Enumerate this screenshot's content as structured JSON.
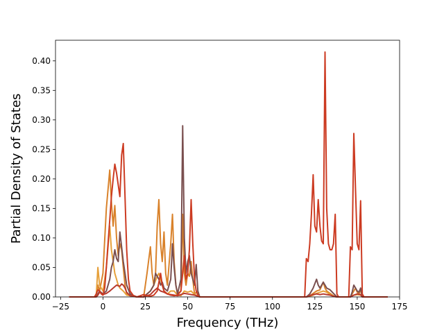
{
  "chart_data": {
    "type": "line",
    "title": "",
    "xlabel": "Frequency (THz)",
    "ylabel": "Partial Density of States",
    "xlim": [
      -28,
      175
    ],
    "ylim": [
      0,
      0.435
    ],
    "xticks": [
      -25,
      0,
      25,
      50,
      75,
      100,
      125,
      150,
      175
    ],
    "yticks": [
      0.0,
      0.05,
      0.1,
      0.15,
      0.2,
      0.25,
      0.3,
      0.35,
      0.4
    ],
    "xtick_labels": [
      "−25",
      "0",
      "25",
      "50",
      "75",
      "100",
      "125",
      "150",
      "175"
    ],
    "ytick_labels": [
      "0.00",
      "0.05",
      "0.10",
      "0.15",
      "0.20",
      "0.25",
      "0.30",
      "0.35",
      "0.40"
    ],
    "grid": false,
    "legend": "none",
    "series": [
      {
        "color": "#d9822b",
        "points": [
          [
            -20,
            0
          ],
          [
            -4,
            0
          ],
          [
            -3,
            0.02
          ],
          [
            -2,
            0.01
          ],
          [
            0,
            0.04
          ],
          [
            2,
            0.15
          ],
          [
            4,
            0.215
          ],
          [
            5,
            0.16
          ],
          [
            6,
            0.12
          ],
          [
            7,
            0.155
          ],
          [
            8,
            0.1
          ],
          [
            9,
            0.07
          ],
          [
            10,
            0.09
          ],
          [
            11,
            0.08
          ],
          [
            12,
            0.05
          ],
          [
            13,
            0.02
          ],
          [
            14,
            0.005
          ],
          [
            20,
            0
          ],
          [
            24,
            0
          ],
          [
            26,
            0.04
          ],
          [
            28,
            0.085
          ],
          [
            29,
            0.04
          ],
          [
            30,
            0.02
          ],
          [
            31,
            0.04
          ],
          [
            32,
            0.12
          ],
          [
            33,
            0.165
          ],
          [
            34,
            0.09
          ],
          [
            35,
            0.06
          ],
          [
            36,
            0.11
          ],
          [
            37,
            0.04
          ],
          [
            38,
            0.02
          ],
          [
            40,
            0.09
          ],
          [
            41,
            0.14
          ],
          [
            42,
            0.06
          ],
          [
            43,
            0.02
          ],
          [
            44,
            0.005
          ],
          [
            46,
            0.01
          ],
          [
            47,
            0.14
          ],
          [
            48,
            0.04
          ],
          [
            49,
            0.02
          ],
          [
            50,
            0.04
          ],
          [
            51,
            0.035
          ],
          [
            52,
            0.06
          ],
          [
            53,
            0.03
          ],
          [
            54,
            0.005
          ],
          [
            56,
            0.01
          ],
          [
            57,
            0
          ],
          [
            120,
            0
          ],
          [
            122,
            0.002
          ],
          [
            124,
            0.006
          ],
          [
            126,
            0.01
          ],
          [
            128,
            0.012
          ],
          [
            130,
            0.025
          ],
          [
            131,
            0.015
          ],
          [
            132,
            0.01
          ],
          [
            134,
            0.006
          ],
          [
            136,
            0.002
          ],
          [
            138,
            0
          ],
          [
            146,
            0
          ],
          [
            147,
            0.005
          ],
          [
            148,
            0.01
          ],
          [
            149,
            0.015
          ],
          [
            150,
            0.008
          ],
          [
            151,
            0.005
          ],
          [
            152,
            0.012
          ],
          [
            153,
            0
          ],
          [
            168,
            0
          ]
        ]
      },
      {
        "color": "#e6a03a",
        "points": [
          [
            -20,
            0
          ],
          [
            -4,
            0
          ],
          [
            -3,
            0.05
          ],
          [
            -2,
            0.02
          ],
          [
            0,
            0.01
          ],
          [
            2,
            0.05
          ],
          [
            4,
            0.12
          ],
          [
            5,
            0.08
          ],
          [
            6,
            0.06
          ],
          [
            7,
            0.04
          ],
          [
            8,
            0.03
          ],
          [
            9,
            0.02
          ],
          [
            10,
            0.015
          ],
          [
            12,
            0.01
          ],
          [
            14,
            0.003
          ],
          [
            20,
            0
          ],
          [
            24,
            0
          ],
          [
            26,
            0.005
          ],
          [
            28,
            0.01
          ],
          [
            30,
            0.02
          ],
          [
            32,
            0.035
          ],
          [
            33,
            0.04
          ],
          [
            34,
            0.03
          ],
          [
            35,
            0.02
          ],
          [
            36,
            0.01
          ],
          [
            38,
            0.005
          ],
          [
            40,
            0.01
          ],
          [
            42,
            0.01
          ],
          [
            44,
            0.003
          ],
          [
            46,
            0.002
          ],
          [
            48,
            0.01
          ],
          [
            50,
            0.008
          ],
          [
            52,
            0.01
          ],
          [
            54,
            0.004
          ],
          [
            56,
            0.002
          ],
          [
            57,
            0
          ],
          [
            120,
            0
          ],
          [
            122,
            0.001
          ],
          [
            124,
            0.003
          ],
          [
            126,
            0.006
          ],
          [
            128,
            0.008
          ],
          [
            130,
            0.01
          ],
          [
            132,
            0.008
          ],
          [
            134,
            0.004
          ],
          [
            136,
            0.001
          ],
          [
            138,
            0
          ],
          [
            146,
            0
          ],
          [
            148,
            0.003
          ],
          [
            150,
            0.004
          ],
          [
            152,
            0.003
          ],
          [
            153,
            0
          ],
          [
            168,
            0
          ]
        ]
      },
      {
        "color": "#7a4f4f",
        "points": [
          [
            -20,
            0
          ],
          [
            -4,
            0
          ],
          [
            -3,
            0.005
          ],
          [
            -2,
            0.01
          ],
          [
            0,
            0.005
          ],
          [
            2,
            0.01
          ],
          [
            4,
            0.03
          ],
          [
            5,
            0.05
          ],
          [
            6,
            0.06
          ],
          [
            7,
            0.08
          ],
          [
            8,
            0.065
          ],
          [
            9,
            0.06
          ],
          [
            10,
            0.11
          ],
          [
            11,
            0.085
          ],
          [
            12,
            0.06
          ],
          [
            13,
            0.04
          ],
          [
            14,
            0.02
          ],
          [
            16,
            0.005
          ],
          [
            20,
            0
          ],
          [
            24,
            0
          ],
          [
            26,
            0.005
          ],
          [
            28,
            0.01
          ],
          [
            30,
            0.02
          ],
          [
            31,
            0.04
          ],
          [
            32,
            0.035
          ],
          [
            33,
            0.03
          ],
          [
            34,
            0.02
          ],
          [
            35,
            0.025
          ],
          [
            36,
            0.015
          ],
          [
            38,
            0.01
          ],
          [
            40,
            0.03
          ],
          [
            41,
            0.09
          ],
          [
            42,
            0.05
          ],
          [
            43,
            0.02
          ],
          [
            44,
            0.005
          ],
          [
            46,
            0.03
          ],
          [
            47,
            0.29
          ],
          [
            48,
            0.1
          ],
          [
            49,
            0.04
          ],
          [
            50,
            0.06
          ],
          [
            51,
            0.07
          ],
          [
            52,
            0.04
          ],
          [
            53,
            0.03
          ],
          [
            54,
            0.02
          ],
          [
            55,
            0.055
          ],
          [
            56,
            0.01
          ],
          [
            57,
            0
          ],
          [
            120,
            0
          ],
          [
            122,
            0.005
          ],
          [
            124,
            0.015
          ],
          [
            126,
            0.03
          ],
          [
            127,
            0.02
          ],
          [
            128,
            0.015
          ],
          [
            129,
            0.02
          ],
          [
            130,
            0.025
          ],
          [
            131,
            0.02
          ],
          [
            132,
            0.015
          ],
          [
            134,
            0.012
          ],
          [
            136,
            0.006
          ],
          [
            138,
            0
          ],
          [
            146,
            0
          ],
          [
            147,
            0.008
          ],
          [
            148,
            0.02
          ],
          [
            149,
            0.015
          ],
          [
            150,
            0.01
          ],
          [
            151,
            0.008
          ],
          [
            152,
            0.015
          ],
          [
            153,
            0
          ],
          [
            168,
            0
          ]
        ]
      },
      {
        "color": "#b83a2e",
        "points": [
          [
            -20,
            0
          ],
          [
            -4,
            0
          ],
          [
            -3,
            0.003
          ],
          [
            -2,
            0.008
          ],
          [
            0,
            0.004
          ],
          [
            2,
            0.006
          ],
          [
            4,
            0.01
          ],
          [
            6,
            0.015
          ],
          [
            8,
            0.02
          ],
          [
            10,
            0.018
          ],
          [
            11,
            0.022
          ],
          [
            12,
            0.02
          ],
          [
            13,
            0.015
          ],
          [
            14,
            0.008
          ],
          [
            16,
            0.002
          ],
          [
            20,
            0
          ],
          [
            24,
            0
          ],
          [
            26,
            0.002
          ],
          [
            28,
            0.004
          ],
          [
            30,
            0.01
          ],
          [
            32,
            0.015
          ],
          [
            34,
            0.01
          ],
          [
            36,
            0.008
          ],
          [
            38,
            0.005
          ],
          [
            40,
            0.004
          ],
          [
            42,
            0.003
          ],
          [
            44,
            0.002
          ],
          [
            46,
            0.004
          ],
          [
            48,
            0.006
          ],
          [
            50,
            0.005
          ],
          [
            52,
            0.004
          ],
          [
            54,
            0.003
          ],
          [
            56,
            0.001
          ],
          [
            57,
            0
          ],
          [
            120,
            0
          ],
          [
            122,
            0.002
          ],
          [
            124,
            0.004
          ],
          [
            126,
            0.005
          ],
          [
            128,
            0.004
          ],
          [
            130,
            0.005
          ],
          [
            132,
            0.004
          ],
          [
            134,
            0.003
          ],
          [
            136,
            0.001
          ],
          [
            138,
            0
          ],
          [
            146,
            0
          ],
          [
            148,
            0.003
          ],
          [
            150,
            0.005
          ],
          [
            152,
            0.004
          ],
          [
            153,
            0
          ],
          [
            168,
            0
          ]
        ]
      },
      {
        "color": "#cc3b22",
        "points": [
          [
            -20,
            0
          ],
          [
            -5,
            0
          ],
          [
            -4,
            0.005
          ],
          [
            -3,
            0.012
          ],
          [
            -2,
            0.01
          ],
          [
            -1,
            0.005
          ],
          [
            0,
            0.003
          ],
          [
            1,
            0.015
          ],
          [
            2,
            0.05
          ],
          [
            3,
            0.09
          ],
          [
            4,
            0.13
          ],
          [
            5,
            0.17
          ],
          [
            6,
            0.2
          ],
          [
            7,
            0.225
          ],
          [
            8,
            0.21
          ],
          [
            9,
            0.19
          ],
          [
            10,
            0.17
          ],
          [
            11,
            0.24
          ],
          [
            12,
            0.26
          ],
          [
            13,
            0.17
          ],
          [
            14,
            0.08
          ],
          [
            15,
            0.03
          ],
          [
            16,
            0.01
          ],
          [
            18,
            0.002
          ],
          [
            20,
            0
          ],
          [
            22,
            0.002
          ],
          [
            24,
            0.004
          ],
          [
            26,
            0.002
          ],
          [
            28,
            0.001
          ],
          [
            30,
            0.003
          ],
          [
            32,
            0.01
          ],
          [
            34,
            0.04
          ],
          [
            35,
            0.02
          ],
          [
            36,
            0.01
          ],
          [
            38,
            0.005
          ],
          [
            40,
            0.003
          ],
          [
            42,
            0.002
          ],
          [
            44,
            0.003
          ],
          [
            46,
            0.01
          ],
          [
            47,
            0.04
          ],
          [
            48,
            0.07
          ],
          [
            49,
            0.03
          ],
          [
            50,
            0.04
          ],
          [
            51,
            0.08
          ],
          [
            52,
            0.165
          ],
          [
            53,
            0.09
          ],
          [
            54,
            0.03
          ],
          [
            55,
            0.01
          ],
          [
            56,
            0.003
          ],
          [
            57,
            0
          ],
          [
            119,
            0
          ],
          [
            120,
            0.065
          ],
          [
            121,
            0.06
          ],
          [
            122,
            0.09
          ],
          [
            123,
            0.14
          ],
          [
            124,
            0.207
          ],
          [
            125,
            0.12
          ],
          [
            126,
            0.11
          ],
          [
            127,
            0.165
          ],
          [
            128,
            0.12
          ],
          [
            129,
            0.095
          ],
          [
            130,
            0.09
          ],
          [
            131,
            0.415
          ],
          [
            132,
            0.15
          ],
          [
            133,
            0.09
          ],
          [
            134,
            0.08
          ],
          [
            135,
            0.08
          ],
          [
            136,
            0.09
          ],
          [
            137,
            0.14
          ],
          [
            138,
            0.005
          ],
          [
            139,
            0
          ],
          [
            145,
            0
          ],
          [
            146,
            0.085
          ],
          [
            147,
            0.08
          ],
          [
            148,
            0.277
          ],
          [
            149,
            0.18
          ],
          [
            150,
            0.09
          ],
          [
            151,
            0.08
          ],
          [
            152,
            0.163
          ],
          [
            153,
            0.005
          ],
          [
            154,
            0
          ],
          [
            168,
            0
          ]
        ]
      }
    ]
  }
}
